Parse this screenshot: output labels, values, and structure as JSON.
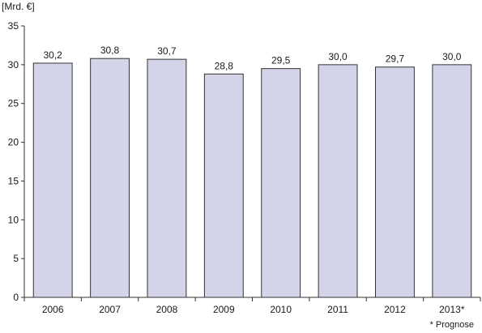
{
  "chart_data": {
    "type": "bar",
    "ylabel": "[Mrd. €]",
    "categories": [
      "2006",
      "2007",
      "2008",
      "2009",
      "2010",
      "2011",
      "2012",
      "2013*"
    ],
    "values": [
      30.2,
      30.8,
      30.7,
      28.8,
      29.5,
      30.0,
      29.7,
      30.0
    ],
    "value_labels": [
      "30,2",
      "30,8",
      "30,7",
      "28,8",
      "29,5",
      "30,0",
      "29,7",
      "30,0"
    ],
    "ylim": [
      0,
      35
    ],
    "yticks": [
      0,
      5,
      10,
      15,
      20,
      25,
      30,
      35
    ],
    "grid": false,
    "footnote": "* Prognose",
    "colors": {
      "bar_fill": "#d3d4e8",
      "bar_stroke": "#333333",
      "axis": "#333333"
    }
  }
}
